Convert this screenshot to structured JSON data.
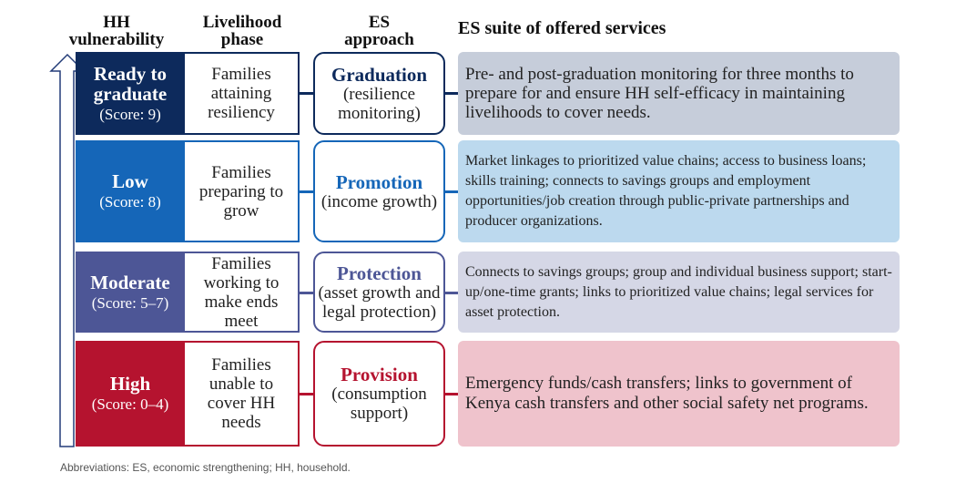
{
  "headers": {
    "vulnerability": [
      "HH",
      "vulnerability"
    ],
    "phase": [
      "Livelihood",
      "phase"
    ],
    "approach": [
      "ES",
      "approach"
    ],
    "services": "ES suite of offered services"
  },
  "rows": [
    {
      "tier": [
        "Ready to",
        "graduate"
      ],
      "score": "(Score: 9)",
      "phase": "Families attaining resiliency",
      "approach": "Graduation",
      "approach_sub": "(resilience monitoring)",
      "services": "Pre- and post-graduation monitoring for three months to prepare for and ensure HH self-efficacy in maintaining livelihoods to cover needs."
    },
    {
      "tier": [
        "Low"
      ],
      "score": "(Score: 8)",
      "phase": "Families preparing to grow",
      "approach": "Promotion",
      "approach_sub": "(income growth)",
      "services": "Market linkages to prioritized value chains; access to business loans; skills training; connects to savings groups and employment opportunities/job creation through public-private partnerships and producer organizations."
    },
    {
      "tier": [
        "Moderate"
      ],
      "score": "(Score: 5–7)",
      "phase": "Families working to make ends meet",
      "approach": "Protection",
      "approach_sub": "(asset growth and legal protection)",
      "services": "Connects to savings groups; group and individual business support; start-up/one-time grants; links to prioritized value chains; legal services for asset protection."
    },
    {
      "tier": [
        "High"
      ],
      "score": "(Score: 0–4)",
      "phase": "Families unable to cover HH needs",
      "approach": "Provision",
      "approach_sub": "(consumption support)",
      "services": "Emergency funds/cash transfers; links to government of Kenya cash transfers and other social safety net programs."
    }
  ],
  "colors": {
    "ready": "#0d2a5c",
    "low": "#1566b8",
    "moderate": "#4d5696",
    "high": "#b5132f",
    "svc_ready": "#c6cdda",
    "svc_low": "#bcd9ee",
    "svc_moderate": "#d5d7e6",
    "svc_high": "#efc3cc",
    "arrow_outline": "#233c78"
  },
  "footer": "Abbreviations: ES, economic strengthening; HH, household."
}
